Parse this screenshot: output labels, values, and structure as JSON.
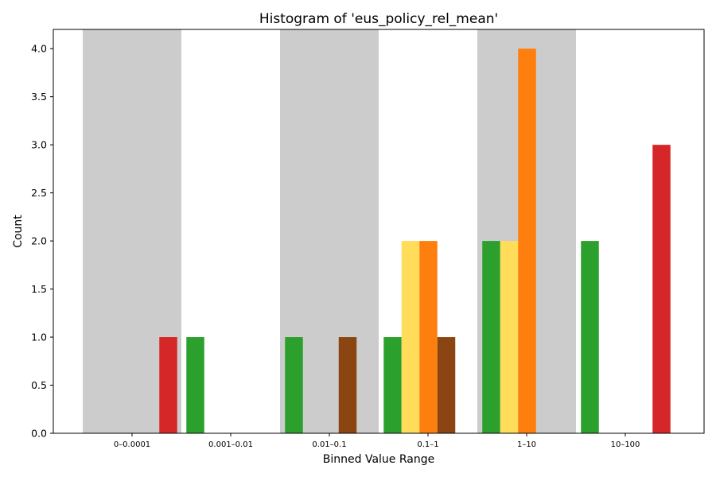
{
  "chart_data": {
    "type": "bar",
    "title": "Histogram of 'eus_policy_rel_mean'",
    "xlabel": "Binned Value Range",
    "ylabel": "Count",
    "ylim": [
      0,
      4.2
    ],
    "yticks": [
      "0.0",
      "0.5",
      "1.0",
      "1.5",
      "2.0",
      "2.5",
      "3.0",
      "3.5",
      "4.0"
    ],
    "categories": [
      "0–0.0001",
      "0.001–0.01",
      "0.01–0.1",
      "0.1–1",
      "1–10",
      "10–100"
    ],
    "shaded_bands": [
      "0–0.0001",
      "0.01–0.1",
      "1–10"
    ],
    "grid": false,
    "legend": "none",
    "series": [
      {
        "color": "#2ca02c",
        "values": [
          0,
          1,
          1,
          1,
          2,
          2
        ]
      },
      {
        "color": "#ffdc5a",
        "values": [
          0,
          0,
          0,
          2,
          2,
          0
        ]
      },
      {
        "color": "#ff7f0e",
        "values": [
          0,
          0,
          0,
          2,
          4,
          0
        ]
      },
      {
        "color": "#8b4513",
        "values": [
          0,
          0,
          1,
          1,
          0,
          0
        ]
      },
      {
        "color": "#d62728",
        "values": [
          1,
          0,
          0,
          0,
          0,
          3
        ]
      }
    ],
    "band_color": "#cccccc"
  }
}
